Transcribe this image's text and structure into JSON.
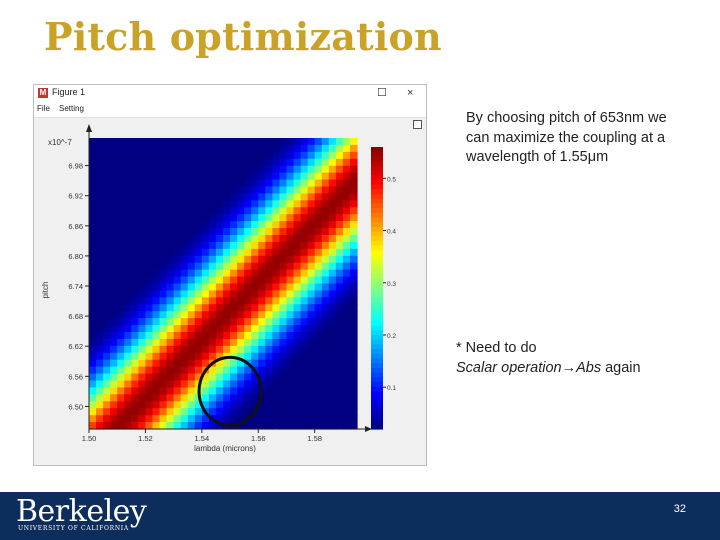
{
  "slide": {
    "title": "Pitch optimization",
    "description": "By choosing pitch of 653nm we can maximize the coupling at a wavelength of 1.55μm",
    "note_line1": "* Need to do",
    "note_line2_italic": "Scalar operation→Abs",
    "note_line2_rest": " again",
    "page_number": "32"
  },
  "figure_window": {
    "title": "Figure 1",
    "icon_letter": "M",
    "minimize_glyph": "☐",
    "close_glyph": "×",
    "menu": [
      "File",
      "Setting"
    ]
  },
  "footer": {
    "logo_word": "Berkeley",
    "logo_sub": "UNIVERSITY OF CALIFORNIA"
  },
  "colors": {
    "title": "#c9a227",
    "footer_bg": "#0d2d5c",
    "highlight_circle": "#111111"
  },
  "chart_data": {
    "type": "heatmap",
    "xlabel": "lambda (microns)",
    "ylabel": "pitch",
    "y_multiplier": "x10^-7",
    "x_tick_labels": [
      "1.50",
      "1.52",
      "1.54",
      "1.56",
      "1.58"
    ],
    "x_ticks": [
      1.5,
      1.52,
      1.54,
      1.56,
      1.58
    ],
    "xlim": [
      1.5,
      1.595
    ],
    "y_tick_labels": [
      "6.50",
      "6.56",
      "6.62",
      "6.68",
      "6.74",
      "6.80",
      "6.86",
      "6.92",
      "6.98"
    ],
    "y_ticks": [
      6.5,
      6.56,
      6.62,
      6.68,
      6.74,
      6.8,
      6.86,
      6.92,
      6.98
    ],
    "ylim": [
      6.455,
      7.035
    ],
    "colorbar_ticks": [
      0.1,
      0.2,
      0.3,
      0.4,
      0.5
    ],
    "colorbar_labels": [
      "0.1",
      "0.2",
      "0.3",
      "0.4",
      "0.5"
    ],
    "colorbar_range": [
      0.02,
      0.56
    ],
    "colormap": "jet",
    "peak_ridge": {
      "x0": 1.5,
      "y0": 6.4,
      "slope": 5.8,
      "width": 0.13
    },
    "peak_value": 0.55,
    "highlight": {
      "x": 1.55,
      "y": 6.53
    }
  }
}
